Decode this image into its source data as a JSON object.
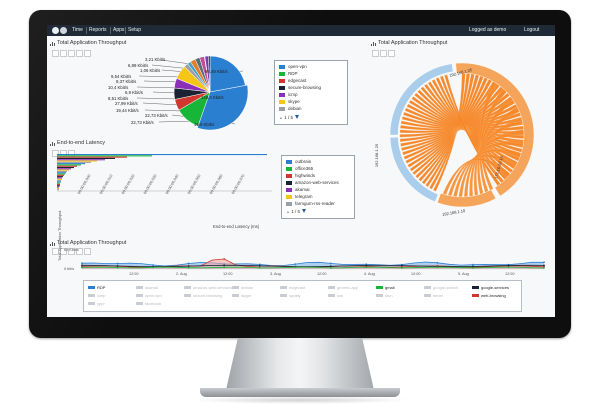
{
  "nav": {
    "items": [
      "Time",
      "Reports",
      "Apps",
      "Setup"
    ],
    "user_text": "Logged as demo",
    "logout": "Logout"
  },
  "panels": {
    "pie": {
      "title": "Total Application Throughput",
      "labels_left": [
        "3,21 Kbit/s",
        "6,99 Kbit/s",
        "1,06 Kbit/s",
        "9,54 Kbit/s",
        "9,37 Kbit/s",
        "10,4 Kbit/s",
        "6,9 Kbit/s",
        "8,51 Kbit/s",
        "27,99 Kbit/s",
        "19,44 Kbit/s",
        "22,73 Kbit/s",
        "22,73 Kbit/s"
      ],
      "labels_right": [
        "98,49 Kbit/s",
        "148,4 Kbit/s",
        "49,9 Kbit/s"
      ],
      "legend": [
        "open-vpn",
        "RDP",
        "edgecast",
        "secure-browsing",
        "icmp",
        "skype",
        "debian"
      ],
      "pager": "1 / 5",
      "colors": [
        "#2b7fd1",
        "#17b538",
        "#d0382f",
        "#1a2233",
        "#8b2fb8",
        "#f5c518",
        "#9aa0a6"
      ]
    },
    "chord": {
      "title": "Total Application Throughput",
      "arc_labels": [
        "192.168.1.35",
        "172.16.20.10",
        "192.168.1.10",
        "192.168.1.25"
      ]
    },
    "latency": {
      "title": "End-to-end Latency",
      "x_ticks": [
        "00:00:00.000",
        "00:00:00.010",
        "00:00:00.020",
        "00:00:00.030",
        "00:00:00.040",
        "00:00:00.050",
        "00:00:00.060",
        "00:00:00.070"
      ],
      "x_label": "End-to-end Latency (ms)",
      "legend": [
        "outbrain",
        "office365",
        "highwinds",
        "amazon-web-services",
        "akamai",
        "telegram",
        "farmgum-rss-reader"
      ],
      "pager": "1 / 5",
      "colors": [
        "#2b7fd1",
        "#17b538",
        "#d0382f",
        "#1a2233",
        "#8b2fb8",
        "#f5c518",
        "#9aa0a6"
      ]
    },
    "timeline": {
      "title": "Total Application Throughput",
      "y_label": "Total Application Throughput",
      "y_ticks": [
        "83 Kbit/s",
        "0 bit/s"
      ],
      "x_ticks": [
        "12:00",
        "2. Aug",
        "12:00",
        "3. Aug",
        "12:00",
        "4. Aug",
        "12:00",
        "5. Aug",
        "12:00"
      ],
      "legend": [
        {
          "name": "RDP",
          "color": "#2b7fd1",
          "active": true
        },
        {
          "name": "akamai",
          "color": "",
          "active": false
        },
        {
          "name": "amazon-web-services",
          "color": "",
          "active": false
        },
        {
          "name": "debian",
          "color": "",
          "active": false
        },
        {
          "name": "edgecast",
          "color": "",
          "active": false
        },
        {
          "name": "generic-app",
          "color": "",
          "active": false
        },
        {
          "name": "gmail",
          "color": "#17b538",
          "active": true
        },
        {
          "name": "google-search",
          "color": "",
          "active": false
        },
        {
          "name": "google-services",
          "color": "#1a2233",
          "active": true
        },
        {
          "name": "icmp",
          "color": "",
          "active": false
        },
        {
          "name": "open-vpn",
          "color": "",
          "active": false
        },
        {
          "name": "secure-browsing",
          "color": "",
          "active": false
        },
        {
          "name": "skype",
          "color": "",
          "active": false
        },
        {
          "name": "spotify",
          "color": "",
          "active": false
        },
        {
          "name": "ssh",
          "color": "",
          "active": false
        },
        {
          "name": "stun",
          "color": "",
          "active": false
        },
        {
          "name": "telnet",
          "color": "",
          "active": false
        },
        {
          "name": "web-browsing",
          "color": "#d0382f",
          "active": true
        },
        {
          "name": "yppr",
          "color": "",
          "active": false
        },
        {
          "name": "facebook",
          "color": "",
          "active": false
        }
      ]
    }
  }
}
